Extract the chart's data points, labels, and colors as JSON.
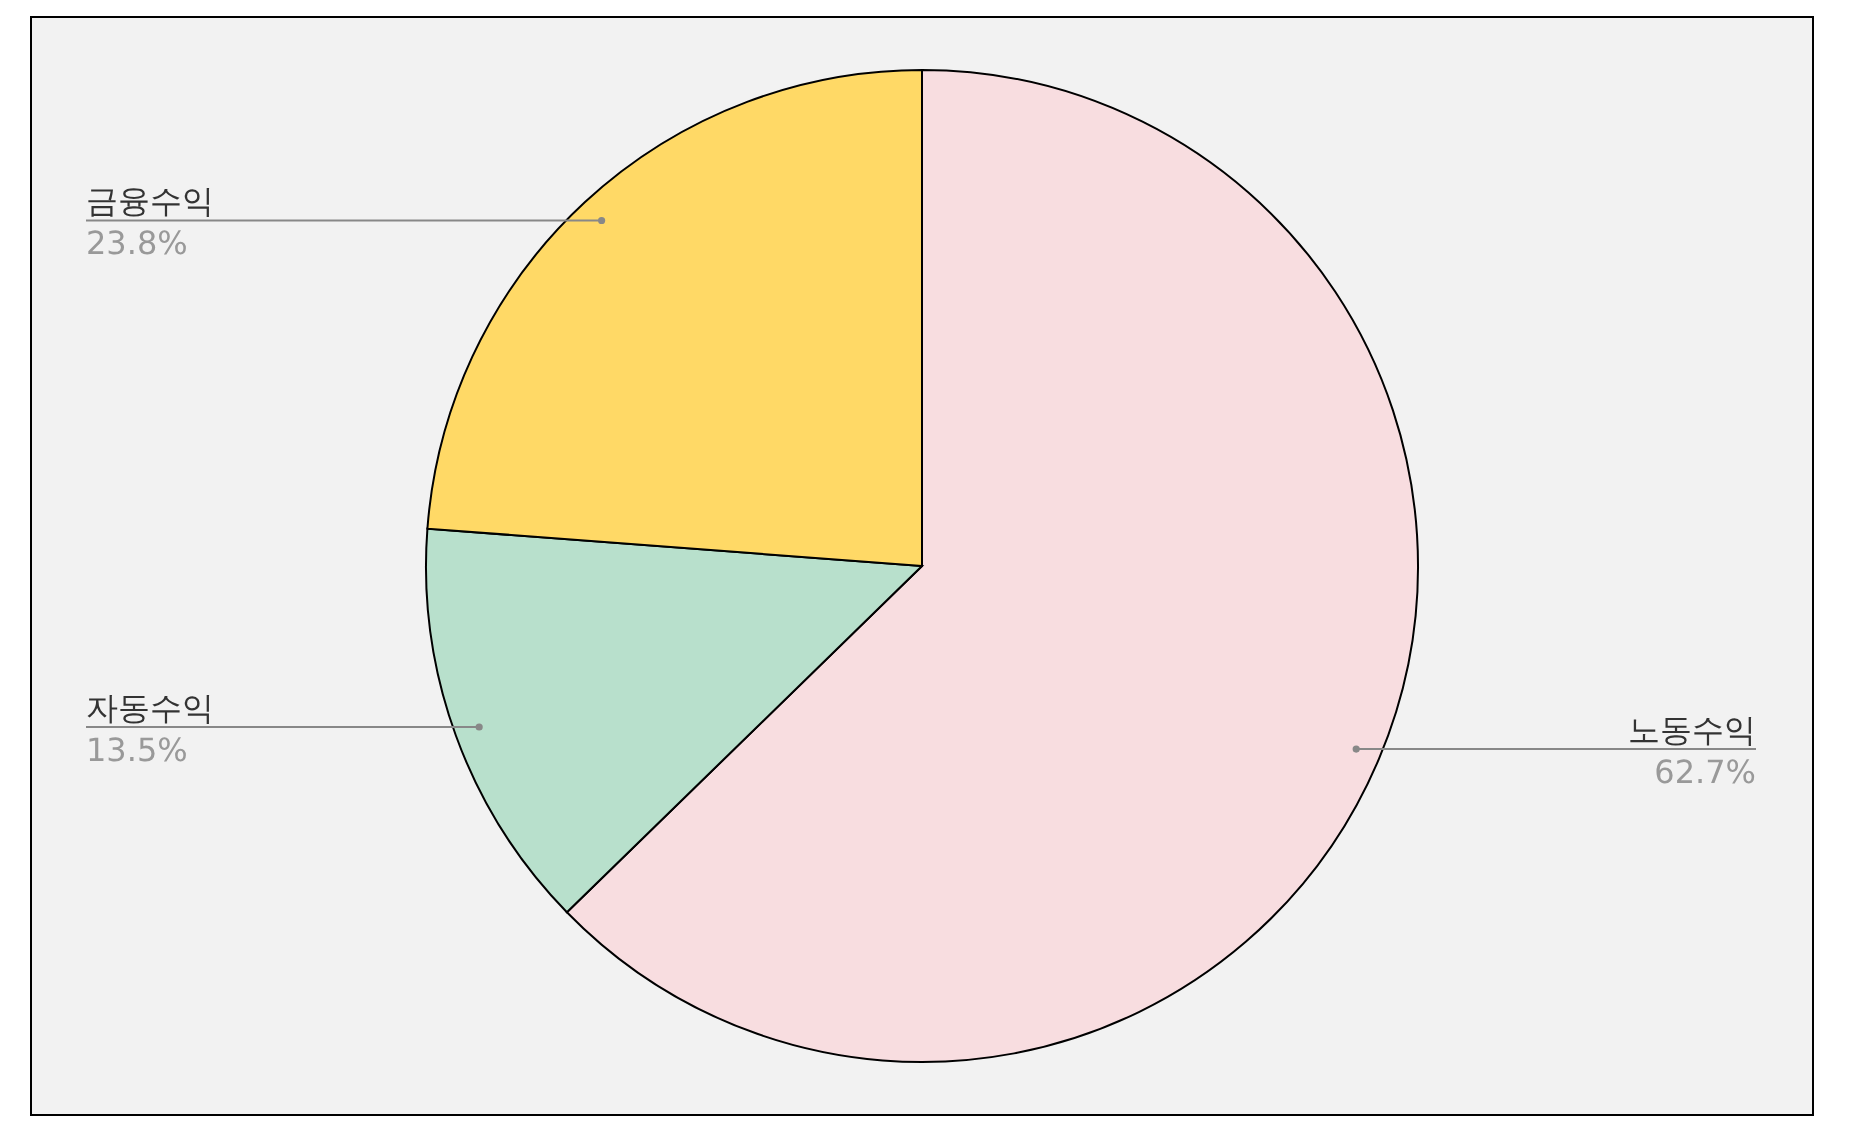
{
  "chart_data": {
    "type": "pie",
    "categories": [
      "노동수익",
      "자동수익",
      "금융수익"
    ],
    "values": [
      62.7,
      13.5,
      23.8
    ],
    "colors": [
      "#f8dde0",
      "#b8e0cc",
      "#ffd966"
    ],
    "value_labels": [
      "62.7%",
      "13.5%",
      "23.8%"
    ]
  }
}
